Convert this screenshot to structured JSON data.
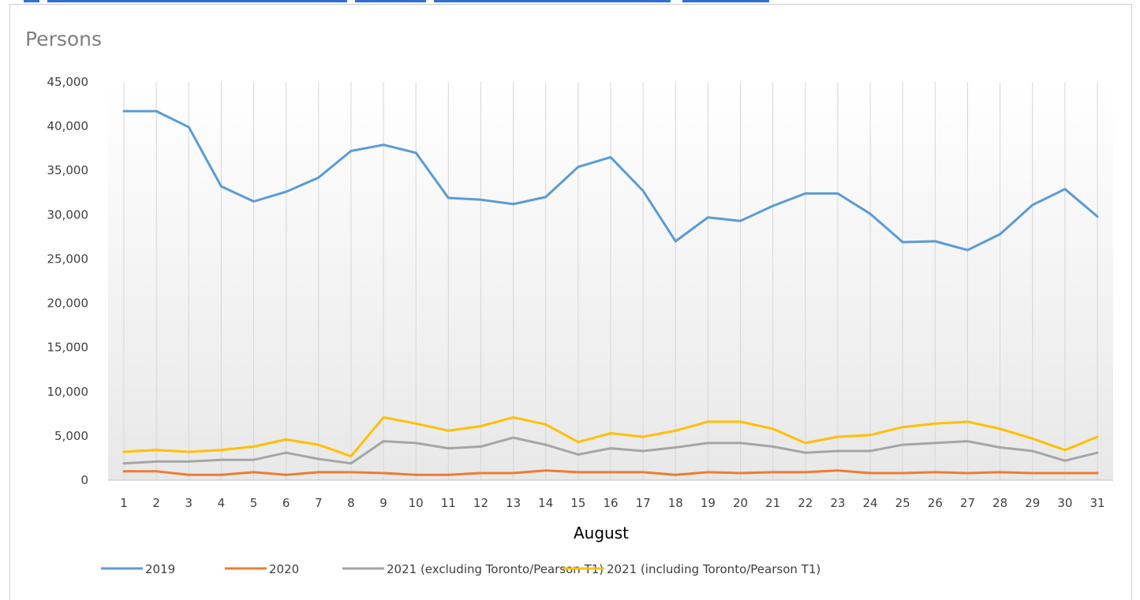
{
  "chart_data": {
    "type": "line",
    "title": "Persons",
    "xlabel": "August",
    "ylabel": "",
    "ylim": [
      0,
      45000
    ],
    "yticks": [
      0,
      5000,
      10000,
      15000,
      20000,
      25000,
      30000,
      35000,
      40000,
      45000
    ],
    "ytick_labels": [
      "0",
      "5,000",
      "10,000",
      "15,000",
      "20,000",
      "25,000",
      "30,000",
      "35,000",
      "40,000",
      "45,000"
    ],
    "x": [
      1,
      2,
      3,
      4,
      5,
      6,
      7,
      8,
      9,
      10,
      11,
      12,
      13,
      14,
      15,
      16,
      17,
      18,
      19,
      20,
      21,
      22,
      23,
      24,
      25,
      26,
      27,
      28,
      29,
      30,
      31
    ],
    "grid": "vertical",
    "legend_position": "bottom",
    "series": [
      {
        "name": "2019",
        "color": "#5b9bd5",
        "values": [
          41700,
          41700,
          39900,
          33200,
          31500,
          32600,
          34200,
          37200,
          37900,
          37000,
          31900,
          31700,
          31200,
          32000,
          35400,
          36500,
          32700,
          27000,
          29700,
          29300,
          31000,
          32400,
          32400,
          30100,
          26900,
          27000,
          26000,
          27800,
          31100,
          32900,
          29800
        ]
      },
      {
        "name": "2020",
        "color": "#ed7d31",
        "values": [
          1000,
          1000,
          600,
          600,
          900,
          600,
          900,
          900,
          800,
          600,
          600,
          800,
          800,
          1100,
          900,
          900,
          900,
          600,
          900,
          800,
          900,
          900,
          1100,
          800,
          800,
          900,
          800,
          900,
          800,
          800,
          800
        ]
      },
      {
        "name": "2021 (excluding Toronto/Pearson T1)",
        "color": "#a5a5a5",
        "values": [
          1900,
          2100,
          2100,
          2300,
          2300,
          3100,
          2400,
          1900,
          4400,
          4200,
          3600,
          3800,
          4800,
          4000,
          2900,
          3600,
          3300,
          3700,
          4200,
          4200,
          3800,
          3100,
          3300,
          3300,
          4000,
          4200,
          4400,
          3700,
          3300,
          2200,
          3100
        ]
      },
      {
        "name": "2021 (including Toronto/Pearson T1)",
        "color": "#ffc000",
        "values": [
          3200,
          3400,
          3200,
          3400,
          3800,
          4600,
          4000,
          2700,
          7100,
          6400,
          5600,
          6100,
          7100,
          6300,
          4300,
          5300,
          4900,
          5600,
          6600,
          6600,
          5800,
          4200,
          4900,
          5100,
          6000,
          6400,
          6600,
          5800,
          4700,
          3400,
          4900
        ]
      }
    ]
  }
}
